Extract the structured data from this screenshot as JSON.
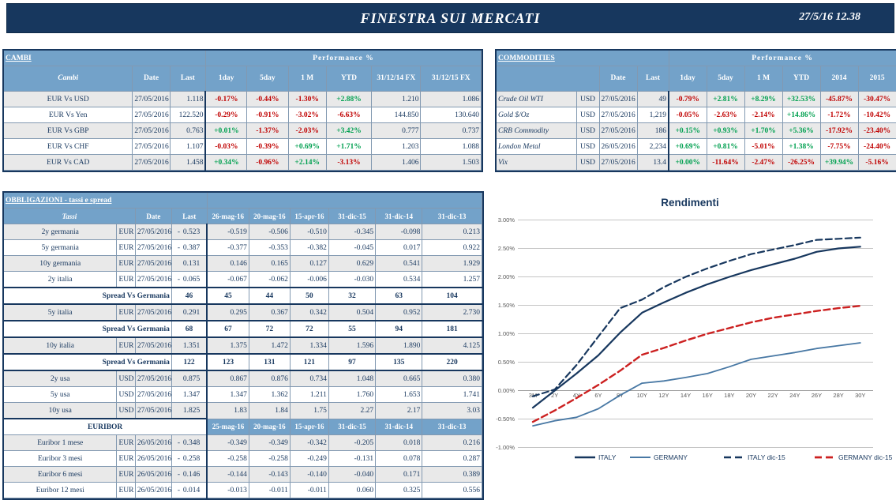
{
  "header": {
    "title": "FINESTRA SUI MERCATI",
    "datetime": "27/5/16 12.38"
  },
  "colors": {
    "navy": "#17375E",
    "header_blue": "#73A2C9",
    "row_gray": "#E9E9E9",
    "pos_green": "#00A050",
    "neg_red": "#C00000",
    "grid_gray": "#C4C4C4"
  },
  "cambi": {
    "title": "CAMBI",
    "perf_title": "Performance %",
    "columns": [
      "Cambi",
      "Date",
      "Last",
      "1day",
      "5day",
      "1 M",
      "YTD",
      "31/12/14 FX",
      "31/12/15 FX"
    ],
    "rows": [
      {
        "label": "EUR Vs USD",
        "date": "27/05/2016",
        "last": "1.118",
        "perf": [
          "-0.17%",
          "-0.44%",
          "-1.30%",
          "+2.88%"
        ],
        "fx14": "1.210",
        "fx15": "1.086",
        "shade": true
      },
      {
        "label": "EUR Vs Yen",
        "date": "27/05/2016",
        "last": "122.520",
        "perf": [
          "-0.29%",
          "-0.91%",
          "-3.02%",
          "-6.63%"
        ],
        "fx14": "144.850",
        "fx15": "130.640",
        "shade": false
      },
      {
        "label": "EUR Vs GBP",
        "date": "27/05/2016",
        "last": "0.763",
        "perf": [
          "+0.01%",
          "-1.37%",
          "-2.03%",
          "+3.42%"
        ],
        "fx14": "0.777",
        "fx15": "0.737",
        "shade": true
      },
      {
        "label": "EUR Vs CHF",
        "date": "27/05/2016",
        "last": "1.107",
        "perf": [
          "-0.03%",
          "-0.39%",
          "+0.69%",
          "+1.71%"
        ],
        "fx14": "1.203",
        "fx15": "1.088",
        "shade": false
      },
      {
        "label": "EUR Vs CAD",
        "date": "27/05/2016",
        "last": "1.458",
        "perf": [
          "+0.34%",
          "-0.96%",
          "+2.14%",
          "-3.13%"
        ],
        "fx14": "1.406",
        "fx15": "1.503",
        "shade": true
      }
    ]
  },
  "commodities": {
    "title": "COMMODITIES",
    "perf_title": "Performance %",
    "columns": [
      "Date",
      "Last",
      "1day",
      "5day",
      "1 M",
      "YTD",
      "2014",
      "2015"
    ],
    "rows": [
      {
        "label": "Crude Oil WTI",
        "cur": "USD",
        "date": "27/05/2016",
        "last": "49",
        "perf": [
          "-0.79%",
          "+2.81%",
          "+8.29%",
          "+32.53%",
          "-45.87%",
          "-30.47%"
        ],
        "shade": true
      },
      {
        "label": "Gold $/Oz",
        "cur": "USD",
        "date": "27/05/2016",
        "last": "1,219",
        "perf": [
          "-0.05%",
          "-2.63%",
          "-2.14%",
          "+14.86%",
          "-1.72%",
          "-10.42%"
        ],
        "shade": false
      },
      {
        "label": "CRB Commodity",
        "cur": "USD",
        "date": "27/05/2016",
        "last": "186",
        "perf": [
          "+0.15%",
          "+0.93%",
          "+1.70%",
          "+5.36%",
          "-17.92%",
          "-23.40%"
        ],
        "shade": true
      },
      {
        "label": "London Metal",
        "cur": "USD",
        "date": "26/05/2016",
        "last": "2,234",
        "perf": [
          "+0.69%",
          "+0.81%",
          "-5.01%",
          "+1.38%",
          "-7.75%",
          "-24.40%"
        ],
        "shade": false
      },
      {
        "label": "Vix",
        "cur": "USD",
        "date": "27/05/2016",
        "last": "13.4",
        "perf": [
          "+0.00%",
          "-11.64%",
          "-2.47%",
          "-26.25%",
          "+39.94%",
          "-5.16%"
        ],
        "shade": true
      }
    ]
  },
  "obbligazioni": {
    "title": "OBBLIGAZIONI - tassi e spread",
    "columns": [
      "Tassi",
      "Date",
      "Last",
      "26-mag-16",
      "20-mag-16",
      "15-apr-16",
      "31-dic-15",
      "31-dic-14",
      "31-dic-13"
    ],
    "euribor_title": "EURIBOR",
    "euribor_columns": [
      "25-mag-16",
      "20-mag-16",
      "15-apr-16",
      "31-dic-15",
      "31-dic-14",
      "31-dic-13"
    ],
    "rows": [
      {
        "kind": "rate",
        "label": "2y germania",
        "cur": "EUR",
        "date": "27/05/2016",
        "last": "-0.523",
        "vals": [
          "-0.519",
          "-0.506",
          "-0.510",
          "-0.345",
          "-0.098",
          "0.213"
        ],
        "shade": true
      },
      {
        "kind": "rate",
        "label": "5y germania",
        "cur": "EUR",
        "date": "27/05/2016",
        "last": "-0.387",
        "vals": [
          "-0.377",
          "-0.353",
          "-0.382",
          "-0.045",
          "0.017",
          "0.922"
        ],
        "shade": false
      },
      {
        "kind": "rate",
        "label": "10y germania",
        "cur": "EUR",
        "date": "27/05/2016",
        "last": "0.131",
        "vals": [
          "0.146",
          "0.165",
          "0.127",
          "0.629",
          "0.541",
          "1.929"
        ],
        "shade": true
      },
      {
        "kind": "rate",
        "label": "2y italia",
        "cur": "EUR",
        "date": "27/05/2016",
        "last": "-0.065",
        "vals": [
          "-0.067",
          "-0.062",
          "-0.006",
          "-0.030",
          "0.534",
          "1.257"
        ],
        "shade": false
      },
      {
        "kind": "spread",
        "label": "Spread Vs Germania",
        "last": "46",
        "vals": [
          "45",
          "44",
          "50",
          "32",
          "63",
          "104"
        ]
      },
      {
        "kind": "rate",
        "label": "5y italia",
        "cur": "EUR",
        "date": "27/05/2016",
        "last": "0.291",
        "vals": [
          "0.295",
          "0.367",
          "0.342",
          "0.504",
          "0.952",
          "2.730"
        ],
        "shade": true
      },
      {
        "kind": "spread",
        "label": "Spread Vs Germania",
        "last": "68",
        "vals": [
          "67",
          "72",
          "72",
          "55",
          "94",
          "181"
        ]
      },
      {
        "kind": "rate",
        "label": "10y italia",
        "cur": "EUR",
        "date": "27/05/2016",
        "last": "1.351",
        "vals": [
          "1.375",
          "1.472",
          "1.334",
          "1.596",
          "1.890",
          "4.125"
        ],
        "shade": true
      },
      {
        "kind": "spread",
        "label": "Spread Vs Germania",
        "last": "122",
        "vals": [
          "123",
          "131",
          "121",
          "97",
          "135",
          "220"
        ]
      },
      {
        "kind": "rate",
        "label": "2y usa",
        "cur": "USD",
        "date": "27/05/2016",
        "last": "0.875",
        "vals": [
          "0.867",
          "0.876",
          "0.734",
          "1.048",
          "0.665",
          "0.380"
        ],
        "shade": true
      },
      {
        "kind": "rate",
        "label": "5y usa",
        "cur": "USD",
        "date": "27/05/2016",
        "last": "1.347",
        "vals": [
          "1.347",
          "1.362",
          "1.211",
          "1.760",
          "1.653",
          "1.741"
        ],
        "shade": false
      },
      {
        "kind": "rate",
        "label": "10y usa",
        "cur": "USD",
        "date": "27/05/2016",
        "last": "1.825",
        "vals": [
          "1.83",
          "1.84",
          "1.75",
          "2.27",
          "2.17",
          "3.03"
        ],
        "shade": true
      },
      {
        "kind": "euribor_header"
      },
      {
        "kind": "rate",
        "label": "Euribor 1 mese",
        "cur": "EUR",
        "date": "26/05/2016",
        "last": "-0.348",
        "vals": [
          "-0.349",
          "-0.349",
          "-0.342",
          "-0.205",
          "0.018",
          "0.216"
        ],
        "shade": true
      },
      {
        "kind": "rate",
        "label": "Euribor 3 mesi",
        "cur": "EUR",
        "date": "26/05/2016",
        "last": "-0.258",
        "vals": [
          "-0.258",
          "-0.258",
          "-0.249",
          "-0.131",
          "0.078",
          "0.287"
        ],
        "shade": false
      },
      {
        "kind": "rate",
        "label": "Euribor 6 mesi",
        "cur": "EUR",
        "date": "26/05/2016",
        "last": "-0.146",
        "vals": [
          "-0.144",
          "-0.143",
          "-0.140",
          "-0.040",
          "0.171",
          "0.389"
        ],
        "shade": true
      },
      {
        "kind": "rate",
        "label": "Euribor 12 mesi",
        "cur": "EUR",
        "date": "26/05/2016",
        "last": "-0.014",
        "vals": [
          "-0.013",
          "-0.011",
          "-0.011",
          "0.060",
          "0.325",
          "0.556"
        ],
        "shade": false
      }
    ]
  },
  "chart_data": {
    "type": "line",
    "title": "Rendimenti",
    "categories": [
      "3M",
      "2Y",
      "4Y",
      "6Y",
      "8Y",
      "10Y",
      "12Y",
      "14Y",
      "16Y",
      "18Y",
      "20Y",
      "22Y",
      "24Y",
      "26Y",
      "28Y",
      "30Y"
    ],
    "ylim": [
      -1.0,
      3.0
    ],
    "y_tick_step": 0.5,
    "y_tick_format": "percent2",
    "grid": true,
    "legend_position": "bottom",
    "series": [
      {
        "name": "ITALY",
        "color": "#17375E",
        "dash": "solid",
        "width": 2.2,
        "values": [
          -0.3,
          0.0,
          0.3,
          0.62,
          1.02,
          1.37,
          1.55,
          1.72,
          1.87,
          2.0,
          2.12,
          2.22,
          2.32,
          2.44,
          2.5,
          2.53
        ]
      },
      {
        "name": "GERMANY",
        "color": "#4878A4",
        "dash": "solid",
        "width": 1.8,
        "values": [
          -0.62,
          -0.53,
          -0.47,
          -0.32,
          -0.08,
          0.13,
          0.17,
          0.23,
          0.3,
          0.42,
          0.55,
          0.61,
          0.67,
          0.74,
          0.79,
          0.84
        ]
      },
      {
        "name": "ITALY dic-15",
        "color": "#17375E",
        "dash": "dashed",
        "width": 2.2,
        "values": [
          -0.1,
          0.02,
          0.45,
          0.95,
          1.45,
          1.6,
          1.82,
          2.0,
          2.15,
          2.28,
          2.4,
          2.48,
          2.56,
          2.65,
          2.67,
          2.69
        ]
      },
      {
        "name": "GERMANY dic-15",
        "color": "#CC2020",
        "dash": "dashed",
        "width": 2.4,
        "values": [
          -0.55,
          -0.35,
          -0.13,
          0.1,
          0.35,
          0.63,
          0.75,
          0.88,
          1.0,
          1.1,
          1.2,
          1.28,
          1.34,
          1.4,
          1.45,
          1.49
        ]
      }
    ]
  }
}
